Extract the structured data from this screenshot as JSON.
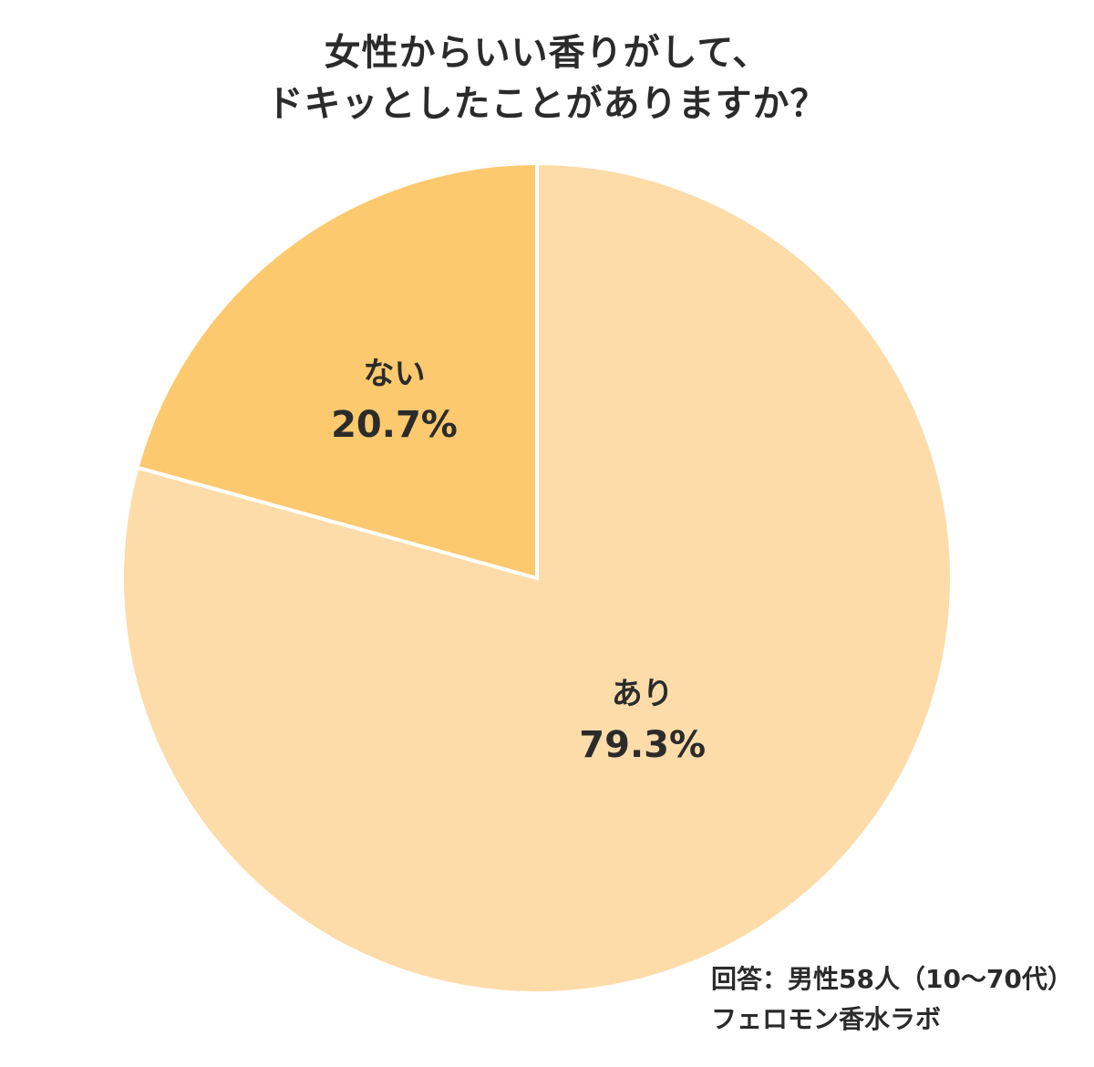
{
  "chart_data": {
    "type": "pie",
    "title_lines": [
      "女性からいい香りがして、",
      "ドキッとしたことがありますか？"
    ],
    "slices": [
      {
        "label": "あり",
        "value": 79.3,
        "display": "79.3%",
        "color": "#FDDCA9"
      },
      {
        "label": "ない",
        "value": 20.7,
        "display": "20.7%",
        "color": "#FCC96E"
      }
    ],
    "start_angle_deg": 0,
    "direction": "clockwise",
    "separator_color": "#ffffff"
  },
  "notes": {
    "respondents": "回答：男性58人（10～70代）",
    "source": "フェロモン香水ラボ"
  }
}
